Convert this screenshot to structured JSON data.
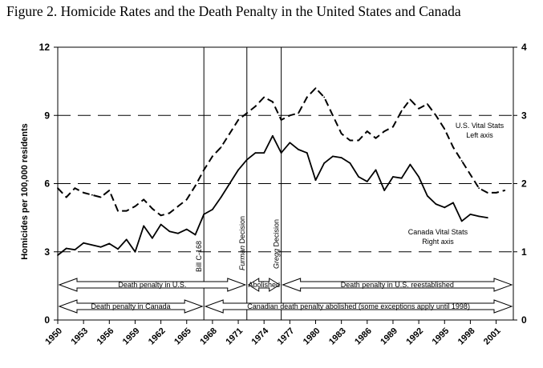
{
  "chart_data": {
    "type": "line",
    "title": "Figure 2. Homicide Rates and the Death Penalty in the United States and Canada",
    "xlabel": "",
    "ylabel": "Homicides per 100,000 residents",
    "xlim": [
      1950,
      2003
    ],
    "ylim": [
      0,
      12
    ],
    "y2lim": [
      0,
      4
    ],
    "x_ticks": [
      1950,
      1953,
      1956,
      1959,
      1962,
      1965,
      1968,
      1971,
      1974,
      1977,
      1980,
      1983,
      1986,
      1989,
      1992,
      1995,
      1998,
      2001
    ],
    "y_ticks": [
      0,
      3,
      6,
      9,
      12
    ],
    "y2_ticks": [
      0,
      1,
      2,
      3,
      4
    ],
    "grid": true,
    "series": [
      {
        "name": "U.S. Vital Stats",
        "label_lines": [
          "U.S. Vital Stats",
          "Left axis"
        ],
        "axis": "left",
        "style": "dashed",
        "x": [
          1950,
          1951,
          1952,
          1953,
          1954,
          1955,
          1956,
          1957,
          1958,
          1959,
          1960,
          1961,
          1962,
          1963,
          1964,
          1965,
          1966,
          1967,
          1968,
          1969,
          1970,
          1971,
          1972,
          1973,
          1974,
          1975,
          1976,
          1977,
          1978,
          1979,
          1980,
          1981,
          1982,
          1983,
          1984,
          1985,
          1986,
          1987,
          1988,
          1989,
          1990,
          1991,
          1992,
          1993,
          1994,
          1995,
          1996,
          1997,
          1998,
          1999,
          2000,
          2001,
          2002
        ],
        "values": [
          5.8,
          5.4,
          5.8,
          5.6,
          5.5,
          5.4,
          5.7,
          4.8,
          4.8,
          5.0,
          5.3,
          4.9,
          4.6,
          4.7,
          5.0,
          5.3,
          5.9,
          6.6,
          7.2,
          7.6,
          8.2,
          8.8,
          9.1,
          9.4,
          9.8,
          9.6,
          8.8,
          9.0,
          9.1,
          9.8,
          10.2,
          9.8,
          9.0,
          8.2,
          7.9,
          7.9,
          8.3,
          8.0,
          8.3,
          8.5,
          9.2,
          9.7,
          9.3,
          9.5,
          9.0,
          8.4,
          7.6,
          7.0,
          6.4,
          5.8,
          5.6,
          5.6,
          5.7
        ]
      },
      {
        "name": "Canada Vital Stats",
        "label_lines": [
          "Canada Vital Stats",
          "Right axis"
        ],
        "axis": "right",
        "style": "solid",
        "x": [
          1950,
          1951,
          1952,
          1953,
          1954,
          1955,
          1956,
          1957,
          1958,
          1959,
          1960,
          1961,
          1962,
          1963,
          1964,
          1965,
          1966,
          1967,
          1968,
          1969,
          1970,
          1971,
          1972,
          1973,
          1974,
          1975,
          1976,
          1977,
          1978,
          1979,
          1980,
          1981,
          1982,
          1983,
          1984,
          1985,
          1986,
          1987,
          1988,
          1989,
          1990,
          1991,
          1992,
          1993,
          1994,
          1995,
          1996,
          1997,
          1998,
          1999,
          2000
        ],
        "values": [
          0.95,
          1.05,
          1.03,
          1.13,
          1.1,
          1.07,
          1.12,
          1.04,
          1.18,
          1.0,
          1.38,
          1.2,
          1.4,
          1.3,
          1.27,
          1.33,
          1.25,
          1.55,
          1.62,
          1.8,
          2.0,
          2.2,
          2.35,
          2.45,
          2.45,
          2.7,
          2.45,
          2.6,
          2.5,
          2.45,
          2.05,
          2.3,
          2.4,
          2.38,
          2.3,
          2.1,
          2.03,
          2.2,
          1.9,
          2.1,
          2.08,
          2.28,
          2.1,
          1.82,
          1.7,
          1.65,
          1.72,
          1.45,
          1.55,
          1.52,
          1.5
        ]
      }
    ],
    "annotations": {
      "vlines": [
        {
          "x": 1967,
          "label": "Bill C-168",
          "style": "normal"
        },
        {
          "x": 1972,
          "label": "Furman Decision",
          "style": "italic-word"
        },
        {
          "x": 1976,
          "label": "Gregg Decision",
          "style": "italic-word"
        }
      ],
      "arrows": [
        {
          "from": 1950,
          "to": 1972,
          "row": "upper",
          "label": "Death penalty in U.S."
        },
        {
          "from": 1972,
          "to": 1976,
          "row": "upper",
          "label": "Abolished"
        },
        {
          "from": 1976,
          "to": 2003,
          "row": "upper",
          "label": "Death penalty in U.S. reestablished"
        },
        {
          "from": 1950,
          "to": 1967,
          "row": "lower",
          "label": "Death penalty in Canada"
        },
        {
          "from": 1967,
          "to": 2003,
          "row": "lower",
          "label": "Canadian death penalty abolished (some exceptions apply until 1998)"
        }
      ]
    }
  }
}
